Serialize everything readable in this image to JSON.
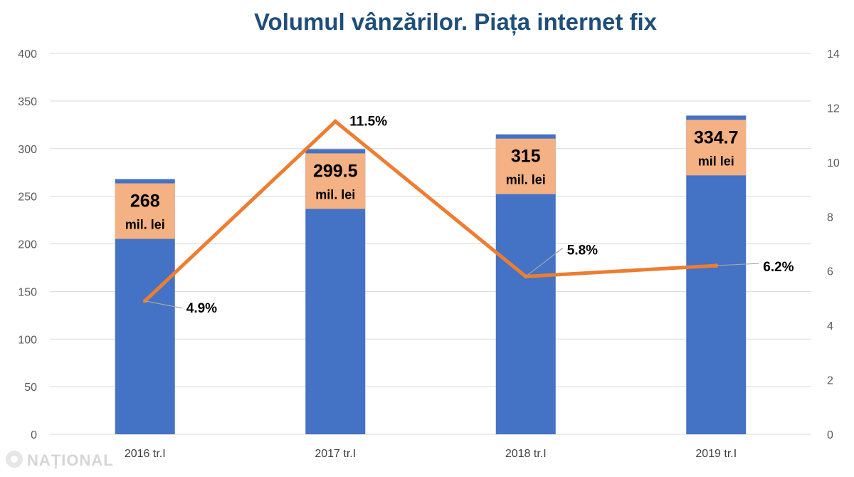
{
  "chart_data": {
    "type": "bar",
    "title": "Volumul vânzărilor. Piața internet fix",
    "categories": [
      "2016 tr.I",
      "2017 tr.I",
      "2018 tr.I",
      "2019 tr.I"
    ],
    "series": [
      {
        "type": "bar",
        "axis": "left",
        "values": [
          268,
          299.5,
          315,
          334.7
        ],
        "labels": [
          {
            "main": "268",
            "unit": "mil. lei"
          },
          {
            "main": "299.5",
            "unit": "mil. lei"
          },
          {
            "main": "315",
            "unit": "mil. lei"
          },
          {
            "main": "334.7",
            "unit": "mil lei"
          }
        ]
      },
      {
        "type": "line",
        "axis": "right",
        "values": [
          4.9,
          11.5,
          5.8,
          6.2
        ],
        "labels": [
          "4.9%",
          "11.5%",
          "5.8%",
          "6.2%"
        ]
      }
    ],
    "y_left": {
      "min": 0,
      "max": 400,
      "step": 50,
      "ticks": [
        "0",
        "50",
        "100",
        "150",
        "200",
        "250",
        "300",
        "350",
        "400"
      ]
    },
    "y_right": {
      "min": 0,
      "max": 14,
      "step": 2,
      "ticks": [
        "0",
        "2",
        "4",
        "6",
        "8",
        "10",
        "12",
        "14"
      ]
    },
    "grid": true,
    "legend": "none"
  },
  "colors": {
    "bar": "#4472c4",
    "line": "#ed7d31",
    "label_box": "#f4b183",
    "grid": "#d9d9d9",
    "title": "#1f4e79"
  },
  "watermark": {
    "text": "NAȚIONAL"
  }
}
